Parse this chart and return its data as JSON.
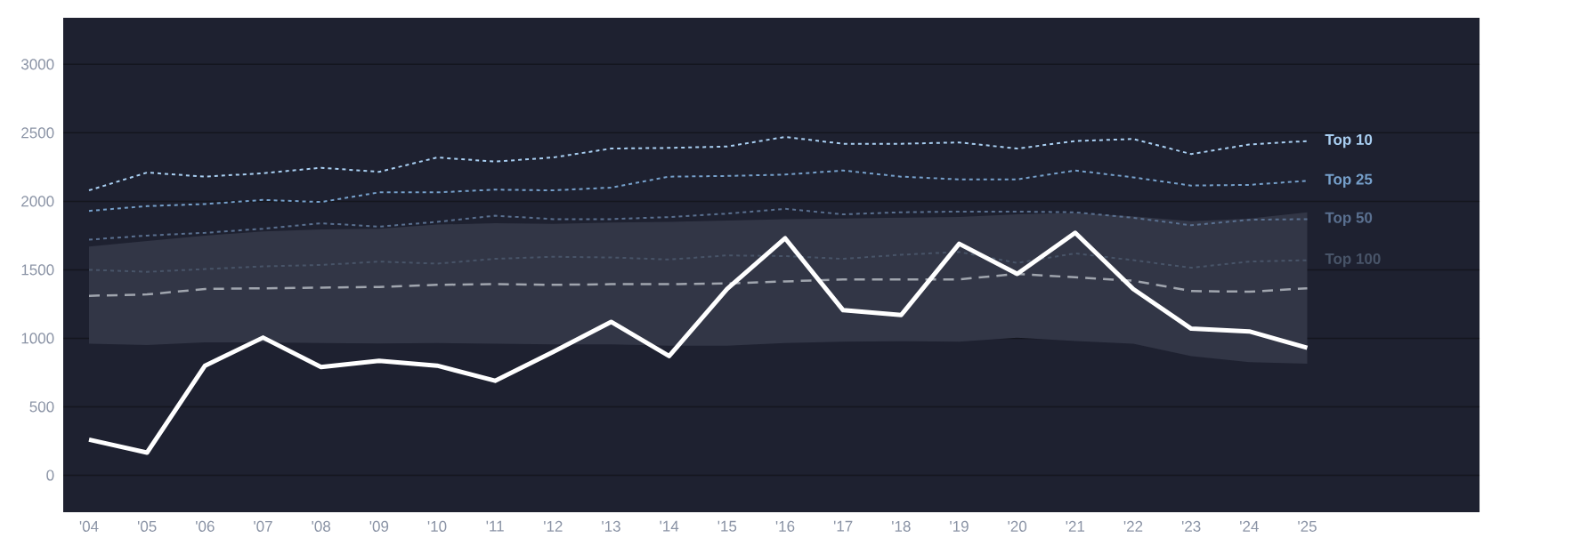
{
  "chart_data": {
    "type": "line",
    "categories": [
      "'04",
      "'05",
      "'06",
      "'07",
      "'08",
      "'09",
      "'10",
      "'11",
      "'12",
      "'13",
      "'14",
      "'15",
      "'16",
      "'17",
      "'18",
      "'19",
      "'20",
      "'21",
      "'22",
      "'23",
      "'24",
      "'25"
    ],
    "ylim": [
      -270,
      3340
    ],
    "yticks": [
      0,
      500,
      1000,
      1500,
      2000,
      2500,
      3000
    ],
    "grid": "y",
    "series": [
      {
        "name": "Top 10",
        "color": "#a9cff2",
        "line_style": "dotted",
        "values": [
          2080,
          2210,
          2180,
          2205,
          2245,
          2215,
          2320,
          2290,
          2320,
          2385,
          2390,
          2400,
          2470,
          2420,
          2420,
          2430,
          2385,
          2440,
          2455,
          2345,
          2415,
          2440
        ]
      },
      {
        "name": "Top 25",
        "color": "#76a0cb",
        "line_style": "dotted",
        "values": [
          1930,
          1965,
          1980,
          2010,
          1995,
          2065,
          2065,
          2085,
          2080,
          2100,
          2180,
          2185,
          2195,
          2225,
          2180,
          2160,
          2160,
          2225,
          2175,
          2115,
          2120,
          2150
        ]
      },
      {
        "name": "Top 50",
        "color": "#5a7090",
        "line_style": "dotted",
        "values": [
          1720,
          1750,
          1770,
          1800,
          1840,
          1815,
          1850,
          1895,
          1870,
          1870,
          1885,
          1910,
          1945,
          1905,
          1920,
          1925,
          1925,
          1920,
          1880,
          1825,
          1865,
          1870
        ]
      },
      {
        "name": "Top 100",
        "color": "#485468",
        "line_style": "dotted",
        "values": [
          1500,
          1485,
          1505,
          1525,
          1535,
          1560,
          1545,
          1580,
          1595,
          1590,
          1575,
          1605,
          1600,
          1580,
          1610,
          1630,
          1550,
          1620,
          1570,
          1515,
          1560,
          1570
        ]
      },
      {
        "color": "#a0a5ae",
        "line_style": "dashed",
        "values": [
          1310,
          1320,
          1360,
          1365,
          1370,
          1375,
          1390,
          1395,
          1390,
          1395,
          1395,
          1400,
          1415,
          1430,
          1430,
          1430,
          1470,
          1445,
          1420,
          1345,
          1340,
          1365
        ],
        "lower": [
          960,
          950,
          970,
          970,
          965,
          962,
          965,
          960,
          955,
          955,
          945,
          945,
          965,
          975,
          978,
          975,
          1005,
          980,
          960,
          870,
          825,
          815
        ],
        "upper": [
          1670,
          1710,
          1750,
          1780,
          1795,
          1800,
          1830,
          1840,
          1835,
          1845,
          1850,
          1860,
          1870,
          1875,
          1880,
          1885,
          1905,
          1915,
          1890,
          1855,
          1875,
          1920
        ]
      },
      {
        "color": "#ffffff",
        "line_style": "solid",
        "values": [
          260,
          165,
          800,
          1005,
          790,
          835,
          800,
          690,
          900,
          1120,
          870,
          1360,
          1730,
          1205,
          1170,
          1690,
          1470,
          1770,
          1360,
          1070,
          1050,
          930
        ]
      }
    ]
  }
}
